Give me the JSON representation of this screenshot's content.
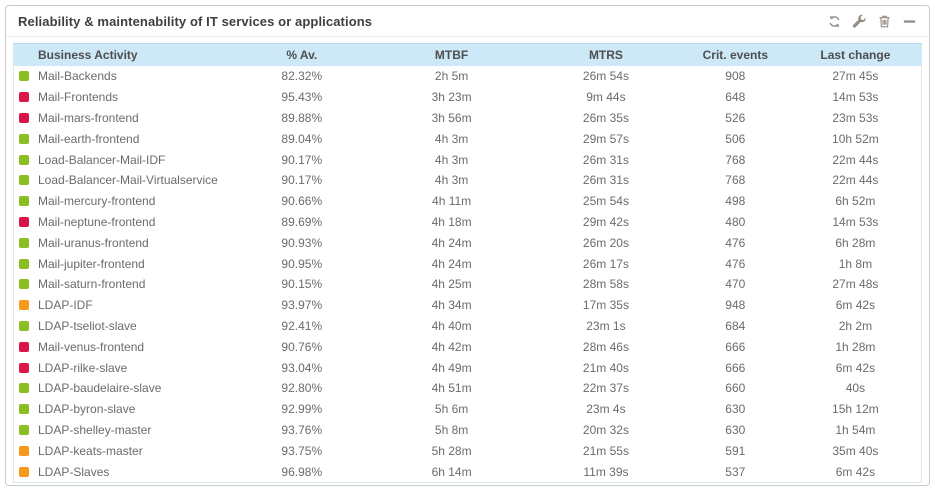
{
  "panel": {
    "title": "Reliability & maintenability of IT services or applications",
    "toolbar": [
      {
        "icon": "refresh-icon",
        "action": "refresh"
      },
      {
        "icon": "wrench-icon",
        "action": "configure"
      },
      {
        "icon": "trash-icon",
        "action": "delete"
      },
      {
        "icon": "minus-icon",
        "action": "collapse"
      }
    ]
  },
  "colors": {
    "green": "#8bbe22",
    "red": "#dc1549",
    "orange": "#f8981d",
    "header_bg": "#cde9f7",
    "header_border": "#b7dcf0",
    "table_border": "#d9e8f1",
    "icon": "#958e85",
    "body_text": "#6b6b6b",
    "header_text": "#4e4e4e"
  },
  "table": {
    "columns": [
      "Business Activity",
      "% Av.",
      "MTBF",
      "MTRS",
      "Crit. events",
      "Last change"
    ],
    "rows": [
      {
        "status": "green",
        "activity": "Mail-Backends",
        "availability": "82.32%",
        "mtbf": "2h 5m",
        "mtrs": "26m 54s",
        "crit_events": "908",
        "last_change": "27m 45s"
      },
      {
        "status": "red",
        "activity": "Mail-Frontends",
        "availability": "95.43%",
        "mtbf": "3h 23m",
        "mtrs": "9m 44s",
        "crit_events": "648",
        "last_change": "14m 53s"
      },
      {
        "status": "red",
        "activity": "Mail-mars-frontend",
        "availability": "89.88%",
        "mtbf": "3h 56m",
        "mtrs": "26m 35s",
        "crit_events": "526",
        "last_change": "23m 53s"
      },
      {
        "status": "green",
        "activity": "Mail-earth-frontend",
        "availability": "89.04%",
        "mtbf": "4h 3m",
        "mtrs": "29m 57s",
        "crit_events": "506",
        "last_change": "10h 52m"
      },
      {
        "status": "green",
        "activity": "Load-Balancer-Mail-IDF",
        "availability": "90.17%",
        "mtbf": "4h 3m",
        "mtrs": "26m 31s",
        "crit_events": "768",
        "last_change": "22m 44s"
      },
      {
        "status": "green",
        "activity": "Load-Balancer-Mail-Virtualservice",
        "availability": "90.17%",
        "mtbf": "4h 3m",
        "mtrs": "26m 31s",
        "crit_events": "768",
        "last_change": "22m 44s"
      },
      {
        "status": "green",
        "activity": "Mail-mercury-frontend",
        "availability": "90.66%",
        "mtbf": "4h 11m",
        "mtrs": "25m 54s",
        "crit_events": "498",
        "last_change": "6h 52m"
      },
      {
        "status": "red",
        "activity": "Mail-neptune-frontend",
        "availability": "89.69%",
        "mtbf": "4h 18m",
        "mtrs": "29m 42s",
        "crit_events": "480",
        "last_change": "14m 53s"
      },
      {
        "status": "green",
        "activity": "Mail-uranus-frontend",
        "availability": "90.93%",
        "mtbf": "4h 24m",
        "mtrs": "26m 20s",
        "crit_events": "476",
        "last_change": "6h 28m"
      },
      {
        "status": "green",
        "activity": "Mail-jupiter-frontend",
        "availability": "90.95%",
        "mtbf": "4h 24m",
        "mtrs": "26m 17s",
        "crit_events": "476",
        "last_change": "1h 8m"
      },
      {
        "status": "green",
        "activity": "Mail-saturn-frontend",
        "availability": "90.15%",
        "mtbf": "4h 25m",
        "mtrs": "28m 58s",
        "crit_events": "470",
        "last_change": "27m 48s"
      },
      {
        "status": "orange",
        "activity": "LDAP-IDF",
        "availability": "93.97%",
        "mtbf": "4h 34m",
        "mtrs": "17m 35s",
        "crit_events": "948",
        "last_change": "6m 42s"
      },
      {
        "status": "green",
        "activity": "LDAP-tseliot-slave",
        "availability": "92.41%",
        "mtbf": "4h 40m",
        "mtrs": "23m 1s",
        "crit_events": "684",
        "last_change": "2h 2m"
      },
      {
        "status": "red",
        "activity": "Mail-venus-frontend",
        "availability": "90.76%",
        "mtbf": "4h 42m",
        "mtrs": "28m 46s",
        "crit_events": "666",
        "last_change": "1h 28m"
      },
      {
        "status": "red",
        "activity": "LDAP-rilke-slave",
        "availability": "93.04%",
        "mtbf": "4h 49m",
        "mtrs": "21m 40s",
        "crit_events": "666",
        "last_change": "6m 42s"
      },
      {
        "status": "green",
        "activity": "LDAP-baudelaire-slave",
        "availability": "92.80%",
        "mtbf": "4h 51m",
        "mtrs": "22m 37s",
        "crit_events": "660",
        "last_change": "40s"
      },
      {
        "status": "green",
        "activity": "LDAP-byron-slave",
        "availability": "92.99%",
        "mtbf": "5h 6m",
        "mtrs": "23m 4s",
        "crit_events": "630",
        "last_change": "15h 12m"
      },
      {
        "status": "green",
        "activity": "LDAP-shelley-master",
        "availability": "93.76%",
        "mtbf": "5h 8m",
        "mtrs": "20m 32s",
        "crit_events": "630",
        "last_change": "1h 54m"
      },
      {
        "status": "orange",
        "activity": "LDAP-keats-master",
        "availability": "93.75%",
        "mtbf": "5h 28m",
        "mtrs": "21m 55s",
        "crit_events": "591",
        "last_change": "35m 40s"
      },
      {
        "status": "orange",
        "activity": "LDAP-Slaves",
        "availability": "96.98%",
        "mtbf": "6h 14m",
        "mtrs": "11m 39s",
        "crit_events": "537",
        "last_change": "6m 42s"
      }
    ]
  }
}
